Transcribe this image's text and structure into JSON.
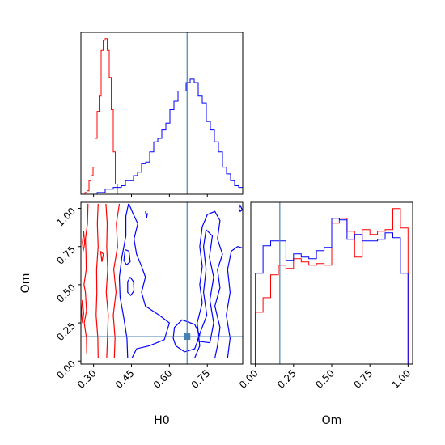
{
  "chart_data": {
    "type": "corner",
    "parameters": [
      "H0",
      "Om"
    ],
    "truths": {
      "H0": 0.67,
      "Om": 0.16
    },
    "colors": {
      "red": "#ff0000",
      "blue": "#0000ff",
      "truth": "#4682b4"
    },
    "grid": false,
    "panels": {
      "h0_hist": {
        "xlim": [
          0.25,
          0.89
        ],
        "xticks": [
          0.3,
          0.45,
          0.6,
          0.75
        ],
        "series": [
          {
            "color": "#ff0000",
            "bin_edges": [
              0.25,
              0.258,
              0.266,
              0.274,
              0.282,
              0.29,
              0.298,
              0.306,
              0.314,
              0.322,
              0.33,
              0.338,
              0.346,
              0.354,
              0.362,
              0.37,
              0.378,
              0.386,
              0.394
            ],
            "counts": [
              0,
              0,
              1,
              2,
              8,
              11,
              16,
              33,
              49,
              58,
              85,
              91,
              92,
              85,
              69,
              50,
              25,
              6
            ]
          },
          {
            "color": "#0000ff",
            "bin_edges": [
              0.25,
              0.266,
              0.282,
              0.298,
              0.314,
              0.33,
              0.346,
              0.362,
              0.378,
              0.394,
              0.41,
              0.426,
              0.442,
              0.458,
              0.474,
              0.49,
              0.506,
              0.522,
              0.538,
              0.554,
              0.57,
              0.586,
              0.602,
              0.618,
              0.634,
              0.65,
              0.666,
              0.682,
              0.698,
              0.714,
              0.73,
              0.746,
              0.762,
              0.778,
              0.794,
              0.81,
              0.826,
              0.842,
              0.858,
              0.874,
              0.89
            ],
            "counts": [
              0,
              0,
              0,
              0,
              1,
              1,
              3,
              3,
              4,
              4,
              5,
              8,
              8,
              11,
              13,
              18,
              19,
              25,
              31,
              33,
              38,
              42,
              50,
              55,
              61,
              61,
              66,
              68,
              66,
              58,
              54,
              43,
              38,
              31,
              25,
              16,
              12,
              8,
              5,
              4
            ]
          }
        ]
      },
      "contour": {
        "xlim": [
          0.25,
          0.89
        ],
        "ylim": [
          -0.02,
          1.04
        ],
        "xticks": [
          0.3,
          0.45,
          0.6,
          0.75
        ],
        "yticks": [
          0.0,
          0.25,
          0.5,
          0.75,
          1.0
        ],
        "xlabel": "H0",
        "ylabel": "Om",
        "contours": [
          {
            "color": "#ff0000",
            "points": [
              [
                0.273,
                0.05
              ],
              [
                0.272,
                0.15
              ],
              [
                0.263,
                0.25
              ],
              [
                0.272,
                0.33
              ],
              [
                0.268,
                0.45
              ],
              [
                0.262,
                0.5
              ],
              [
                0.271,
                0.6
              ],
              [
                0.27,
                0.7
              ],
              [
                0.268,
                0.8
              ],
              [
                0.276,
                0.9
              ],
              [
                0.278,
                1.03
              ]
            ]
          },
          {
            "color": "#ff0000",
            "points": [
              [
                0.318,
                0.02
              ],
              [
                0.317,
                0.15
              ],
              [
                0.31,
                0.3
              ],
              [
                0.313,
                0.45
              ],
              [
                0.312,
                0.6
              ],
              [
                0.318,
                0.75
              ],
              [
                0.315,
                0.9
              ],
              [
                0.318,
                1.03
              ]
            ]
          },
          {
            "color": "#ff0000",
            "points": [
              [
                0.352,
                0.02
              ],
              [
                0.355,
                0.15
              ],
              [
                0.358,
                0.3
              ],
              [
                0.35,
                0.45
              ],
              [
                0.356,
                0.6
              ],
              [
                0.352,
                0.75
              ],
              [
                0.354,
                0.9
              ],
              [
                0.349,
                1.03
              ]
            ]
          },
          {
            "color": "#ff0000",
            "points": [
              [
                0.382,
                0.02
              ],
              [
                0.385,
                0.15
              ],
              [
                0.378,
                0.3
              ],
              [
                0.389,
                0.45
              ],
              [
                0.38,
                0.6
              ],
              [
                0.395,
                0.75
              ],
              [
                0.39,
                0.9
              ],
              [
                0.402,
                1.03
              ]
            ]
          },
          {
            "color": "#ff0000",
            "points": [
              [
                0.261,
                0.85
              ],
              [
                0.256,
                0.78
              ],
              [
                0.259,
                0.72
              ],
              [
                0.265,
                0.77
              ],
              [
                0.261,
                0.85
              ]
            ]
          },
          {
            "color": "#ff0000",
            "points": [
              [
                0.256,
                0.4
              ],
              [
                0.252,
                0.32
              ],
              [
                0.256,
                0.25
              ],
              [
                0.261,
                0.31
              ],
              [
                0.256,
                0.4
              ]
            ]
          },
          {
            "color": "#ff0000",
            "points": [
              [
                0.328,
                0.72
              ],
              [
                0.333,
                0.65
              ],
              [
                0.339,
                0.7
              ],
              [
                0.328,
                0.72
              ]
            ]
          },
          {
            "color": "#0000ff",
            "points": [
              [
                0.435,
                0.02
              ],
              [
                0.432,
                0.15
              ],
              [
                0.42,
                0.28
              ],
              [
                0.405,
                0.42
              ],
              [
                0.402,
                0.55
              ],
              [
                0.412,
                0.68
              ],
              [
                0.428,
                0.82
              ],
              [
                0.428,
                0.95
              ],
              [
                0.438,
                1.03
              ]
            ]
          },
          {
            "color": "#0000ff",
            "points": [
              [
                0.452,
                0.02
              ],
              [
                0.47,
                0.08
              ],
              [
                0.52,
                0.1
              ],
              [
                0.58,
                0.14
              ],
              [
                0.6,
                0.25
              ],
              [
                0.56,
                0.3
              ],
              [
                0.505,
                0.36
              ],
              [
                0.49,
                0.45
              ],
              [
                0.505,
                0.55
              ],
              [
                0.49,
                0.62
              ],
              [
                0.47,
                0.7
              ],
              [
                0.46,
                0.8
              ],
              [
                0.475,
                0.9
              ],
              [
                0.455,
                0.97
              ],
              [
                0.44,
                1.03
              ]
            ]
          },
          {
            "color": "#0000ff",
            "points": [
              [
                0.445,
                0.55
              ],
              [
                0.458,
                0.52
              ],
              [
                0.46,
                0.46
              ],
              [
                0.447,
                0.43
              ],
              [
                0.435,
                0.45
              ],
              [
                0.435,
                0.52
              ],
              [
                0.445,
                0.55
              ]
            ]
          },
          {
            "color": "#0000ff",
            "points": [
              [
                0.425,
                0.73
              ],
              [
                0.44,
                0.72
              ],
              [
                0.445,
                0.65
              ],
              [
                0.43,
                0.63
              ],
              [
                0.42,
                0.66
              ],
              [
                0.425,
                0.73
              ]
            ]
          },
          {
            "color": "#0000ff",
            "points": [
              [
                0.625,
                0.1
              ],
              [
                0.66,
                0.06
              ],
              [
                0.7,
                0.08
              ],
              [
                0.72,
                0.17
              ],
              [
                0.7,
                0.24
              ],
              [
                0.65,
                0.27
              ],
              [
                0.62,
                0.22
              ],
              [
                0.615,
                0.15
              ],
              [
                0.625,
                0.1
              ]
            ]
          },
          {
            "color": "#0000ff",
            "points": [
              [
                0.7,
                0.02
              ],
              [
                0.72,
                0.1
              ],
              [
                0.71,
                0.25
              ],
              [
                0.73,
                0.38
              ],
              [
                0.72,
                0.5
              ],
              [
                0.73,
                0.62
              ],
              [
                0.72,
                0.75
              ],
              [
                0.73,
                0.88
              ],
              [
                0.75,
                0.96
              ],
              [
                0.78,
                0.98
              ],
              [
                0.8,
                0.92
              ],
              [
                0.79,
                0.8
              ],
              [
                0.81,
                0.7
              ],
              [
                0.79,
                0.6
              ],
              [
                0.8,
                0.48
              ],
              [
                0.78,
                0.36
              ],
              [
                0.8,
                0.22
              ],
              [
                0.79,
                0.1
              ],
              [
                0.78,
                0.02
              ]
            ]
          },
          {
            "color": "#0000ff",
            "points": [
              [
                0.71,
                0.13
              ],
              [
                0.76,
                0.12
              ],
              [
                0.775,
                0.25
              ],
              [
                0.76,
                0.4
              ],
              [
                0.775,
                0.55
              ],
              [
                0.758,
                0.68
              ],
              [
                0.77,
                0.82
              ],
              [
                0.745,
                0.86
              ],
              [
                0.735,
                0.75
              ],
              [
                0.745,
                0.6
              ],
              [
                0.735,
                0.45
              ],
              [
                0.748,
                0.3
              ],
              [
                0.725,
                0.2
              ],
              [
                0.71,
                0.13
              ]
            ]
          },
          {
            "color": "#0000ff",
            "points": [
              [
                0.83,
                0.02
              ],
              [
                0.84,
                0.15
              ],
              [
                0.825,
                0.3
              ],
              [
                0.84,
                0.45
              ],
              [
                0.83,
                0.6
              ],
              [
                0.845,
                0.72
              ],
              [
                0.87,
                0.75
              ],
              [
                0.89,
                0.74
              ]
            ]
          },
          {
            "color": "#0000ff",
            "points": [
              [
                0.875,
                1.0
              ],
              [
                0.88,
                0.98
              ],
              [
                0.888,
                0.99
              ],
              [
                0.88,
                1.02
              ],
              [
                0.875,
                1.0
              ]
            ]
          },
          {
            "color": "#0000ff",
            "points": [
              [
                0.505,
                0.98
              ],
              [
                0.51,
                0.94
              ],
              [
                0.513,
                0.97
              ]
            ]
          }
        ]
      },
      "om_hist": {
        "xlim": [
          -0.03,
          1.03
        ],
        "xticks": [
          0.0,
          0.25,
          0.5,
          0.75,
          1.0
        ],
        "xlabel": "Om",
        "series": [
          {
            "color": "#ff0000",
            "bin_edges": [
              0.0,
              0.05,
              0.1,
              0.15,
              0.2,
              0.25,
              0.3,
              0.35,
              0.4,
              0.45,
              0.5,
              0.55,
              0.6,
              0.65,
              0.7,
              0.75,
              0.8,
              0.85,
              0.9,
              0.95,
              1.0
            ],
            "counts": [
              32,
              41,
              55,
              61,
              59,
              65,
              63,
              61,
              62,
              61,
              87,
              90,
              82,
              66,
              83,
              80,
              82,
              83,
              96,
              84
            ]
          },
          {
            "color": "#0000ff",
            "bin_edges": [
              0.0,
              0.05,
              0.1,
              0.15,
              0.2,
              0.25,
              0.3,
              0.35,
              0.4,
              0.45,
              0.5,
              0.55,
              0.6,
              0.65,
              0.7,
              0.75,
              0.8,
              0.85,
              0.9,
              0.95,
              1.0
            ],
            "counts": [
              56,
              73,
              76,
              76,
              64,
              68,
              66,
              65,
              70,
              72,
              90,
              89,
              77,
              80,
              76,
              76,
              77,
              81,
              78,
              56
            ]
          }
        ]
      }
    },
    "tick_labels": {
      "h0": [
        "0.30",
        "0.45",
        "0.60",
        "0.75"
      ],
      "om": [
        "0.00",
        "0.25",
        "0.50",
        "0.75",
        "1.00"
      ]
    }
  }
}
